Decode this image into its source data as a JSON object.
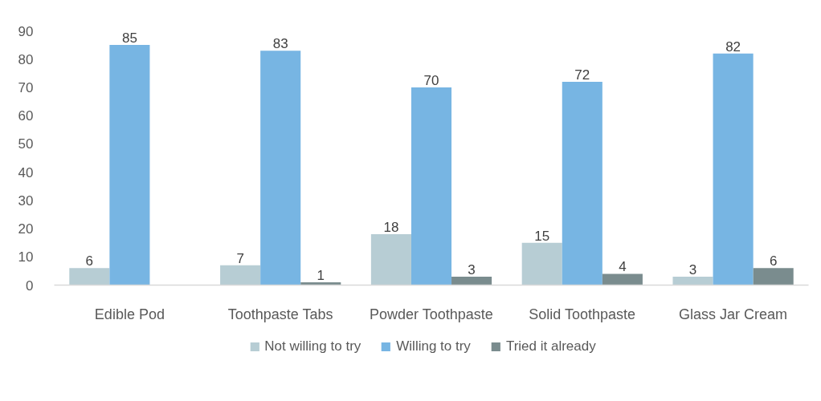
{
  "chart_data": {
    "type": "bar",
    "categories": [
      "Edible Pod",
      "Toothpaste Tabs",
      "Powder Toothpaste",
      "Solid Toothpaste",
      "Glass Jar Cream"
    ],
    "series": [
      {
        "name": "Not willing to try",
        "color": "#b7cdd4",
        "values": [
          6,
          7,
          18,
          15,
          3
        ]
      },
      {
        "name": "Willing to try",
        "color": "#77b5e3",
        "values": [
          85,
          83,
          70,
          72,
          82
        ]
      },
      {
        "name": "Tried it already",
        "color": "#7a8c8e",
        "values": [
          null,
          1,
          3,
          4,
          6
        ]
      }
    ],
    "ylim": [
      0,
      90
    ],
    "yticks": [
      0,
      10,
      20,
      30,
      40,
      50,
      60,
      70,
      80,
      90
    ],
    "legend": "bottom",
    "data_labels": true
  }
}
